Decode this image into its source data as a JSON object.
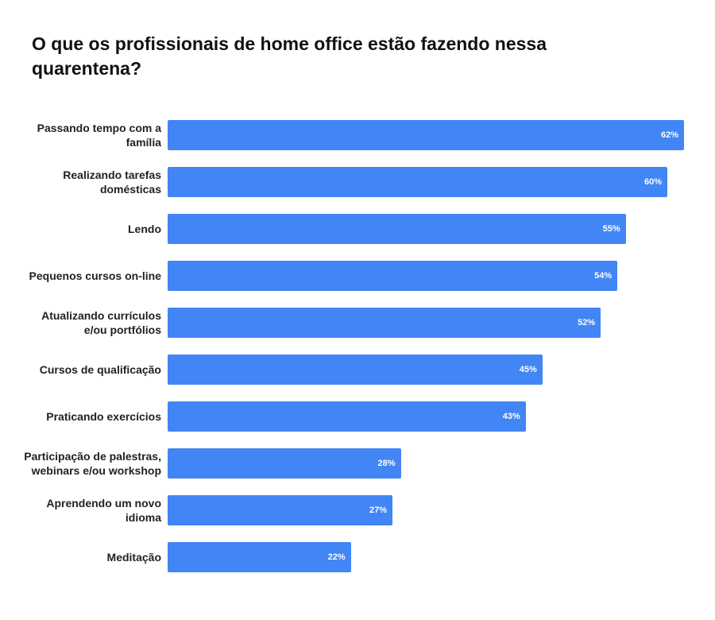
{
  "chart_data": {
    "type": "bar",
    "orientation": "horizontal",
    "title": "O que os profissionais de home office estão fazendo nessa quarentena?",
    "categories": [
      "Passando tempo com a família",
      "Realizando tarefas domésticas",
      "Lendo",
      "Pequenos cursos on-line",
      "Atualizando currículos e/ou portfólios",
      "Cursos de qualificação",
      "Praticando exercícios",
      "Participação de palestras, webinars e/ou workshop",
      "Aprendendo um novo idioma",
      "Meditação"
    ],
    "values": [
      62,
      60,
      55,
      54,
      52,
      45,
      43,
      28,
      27,
      22
    ],
    "value_labels": [
      "62%",
      "60%",
      "55%",
      "54%",
      "52%",
      "45%",
      "43%",
      "28%",
      "27%",
      "22%"
    ],
    "unit": "%",
    "xlim": [
      0,
      62
    ],
    "grid": false,
    "color": "#4285F4"
  }
}
